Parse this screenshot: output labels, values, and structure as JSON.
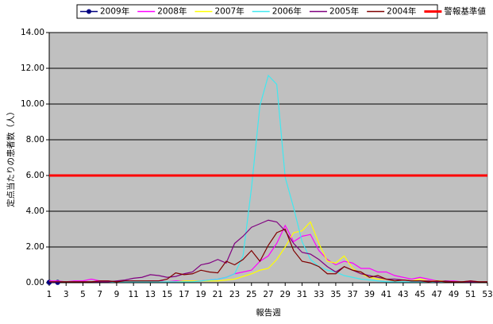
{
  "chart_data": {
    "type": "line",
    "xlabel": "報告週",
    "ylabel": "定点当たりの患者数（人）",
    "x": [
      1,
      2,
      3,
      4,
      5,
      6,
      7,
      8,
      9,
      10,
      11,
      12,
      13,
      14,
      15,
      16,
      17,
      18,
      19,
      20,
      21,
      22,
      23,
      24,
      25,
      26,
      27,
      28,
      29,
      30,
      31,
      32,
      33,
      34,
      35,
      36,
      37,
      38,
      39,
      40,
      41,
      42,
      43,
      44,
      45,
      46,
      47,
      48,
      49,
      50,
      51,
      52,
      53
    ],
    "xlim": [
      1,
      53
    ],
    "xticks": [
      1,
      3,
      5,
      7,
      9,
      11,
      13,
      15,
      17,
      19,
      21,
      23,
      25,
      27,
      29,
      31,
      33,
      35,
      37,
      39,
      41,
      43,
      45,
      47,
      49,
      51,
      53
    ],
    "ylim": [
      0,
      14
    ],
    "yticks": [
      {
        "value": 0,
        "label": "0.00"
      },
      {
        "value": 2,
        "label": "2.00"
      },
      {
        "value": 4,
        "label": "4.00"
      },
      {
        "value": 6,
        "label": "6.00"
      },
      {
        "value": 8,
        "label": "8.00"
      },
      {
        "value": 10,
        "label": "10.00"
      },
      {
        "value": 12,
        "label": "12.00"
      },
      {
        "value": 14,
        "label": "14.00"
      }
    ],
    "grid": true,
    "legend": "top",
    "series": [
      {
        "name": "2009年",
        "color": "#000080",
        "marker": "circle",
        "values": [
          0.02,
          0.02,
          null,
          null,
          null,
          null,
          null,
          null,
          null,
          null,
          null,
          null,
          null,
          null,
          null,
          null,
          null,
          null,
          null,
          null,
          null,
          null,
          null,
          null,
          null,
          null,
          null,
          null,
          null,
          null,
          null,
          null,
          null,
          null,
          null,
          null,
          null,
          null,
          null,
          null,
          null,
          null,
          null,
          null,
          null,
          null,
          null,
          null,
          null,
          null,
          null,
          null,
          null
        ]
      },
      {
        "name": "2008年",
        "color": "#ff00ff",
        "values": [
          0.1,
          0.1,
          0.05,
          0.1,
          0.1,
          0.2,
          0.1,
          0.1,
          0.05,
          0.1,
          0.1,
          0.05,
          0.1,
          0.1,
          0.05,
          0.1,
          0.1,
          0.1,
          0.1,
          0.15,
          0.2,
          0.3,
          0.5,
          0.6,
          0.7,
          1.2,
          1.5,
          2.2,
          3.2,
          2.3,
          2.6,
          2.7,
          1.8,
          1.3,
          1.0,
          1.2,
          1.1,
          0.8,
          0.8,
          0.6,
          0.6,
          0.4,
          0.3,
          0.2,
          0.3,
          0.2,
          0.1,
          0.1,
          0.1,
          0.05,
          0.1,
          0.05,
          0.05
        ]
      },
      {
        "name": "2007年",
        "color": "#ffff00",
        "values": [
          0.05,
          0.05,
          0.05,
          0.05,
          0.05,
          0.05,
          0.05,
          0.05,
          0.05,
          0.05,
          0.05,
          0.05,
          0.05,
          0.05,
          0.05,
          0.05,
          0.1,
          0.1,
          0.1,
          0.1,
          0.1,
          0.15,
          0.2,
          0.35,
          0.5,
          0.7,
          0.8,
          1.3,
          2.0,
          2.8,
          2.9,
          3.4,
          2.2,
          1.2,
          1.1,
          1.5,
          0.8,
          0.5,
          0.3,
          0.2,
          0.2,
          0.1,
          0.15,
          0.1,
          0.2,
          0.1,
          0.1,
          0.1,
          0.05,
          0.05,
          0.05,
          0.05,
          0.05
        ]
      },
      {
        "name": "2006年",
        "color": "#40e8f0",
        "values": [
          0.05,
          0.05,
          0.05,
          0.05,
          0.05,
          0.05,
          0.05,
          0.05,
          0.05,
          0.05,
          0.05,
          0.05,
          0.05,
          0.05,
          0.05,
          0.05,
          0.05,
          0.05,
          0.1,
          0.15,
          0.2,
          0.3,
          0.5,
          1.5,
          5.3,
          9.9,
          11.6,
          11.1,
          5.9,
          4.2,
          2.3,
          1.3,
          0.9,
          0.7,
          0.6,
          0.4,
          0.3,
          0.2,
          0.15,
          0.1,
          0.05,
          0.05,
          0.05,
          0.05,
          0.05,
          0.05,
          0.05,
          0.05,
          0.05,
          0.05,
          0.05,
          0.05,
          0.05
        ]
      },
      {
        "name": "2005年",
        "color": "#800080",
        "values": [
          0.05,
          0.05,
          0.05,
          0.05,
          0.05,
          0.05,
          0.05,
          0.05,
          0.1,
          0.15,
          0.25,
          0.3,
          0.45,
          0.4,
          0.3,
          0.35,
          0.5,
          0.6,
          1.0,
          1.1,
          1.3,
          1.1,
          2.2,
          2.6,
          3.1,
          3.3,
          3.5,
          3.4,
          2.9,
          2.2,
          1.7,
          1.6,
          1.3,
          0.9,
          0.6,
          0.9,
          0.7,
          0.5,
          0.4,
          0.3,
          0.2,
          0.2,
          0.15,
          0.1,
          0.1,
          0.1,
          0.05,
          0.1,
          0.05,
          0.05,
          0.05,
          0.05,
          0.05
        ]
      },
      {
        "name": "2004年",
        "color": "#800000",
        "values": [
          0.05,
          0.05,
          0.05,
          0.05,
          0.05,
          0.05,
          0.1,
          0.1,
          0.05,
          0.1,
          0.1,
          0.1,
          0.1,
          0.1,
          0.2,
          0.55,
          0.45,
          0.5,
          0.7,
          0.6,
          0.55,
          1.2,
          1.0,
          1.3,
          1.8,
          1.2,
          2.1,
          2.8,
          3.0,
          1.8,
          1.2,
          1.1,
          0.9,
          0.5,
          0.5,
          0.9,
          0.7,
          0.6,
          0.3,
          0.4,
          0.2,
          0.1,
          0.15,
          0.1,
          0.1,
          0.05,
          0.1,
          0.05,
          0.05,
          0.05,
          0.1,
          0.05,
          0.05
        ]
      },
      {
        "name": "警報基準値",
        "color": "#ff0000",
        "width": 3,
        "values": [
          6,
          6,
          6,
          6,
          6,
          6,
          6,
          6,
          6,
          6,
          6,
          6,
          6,
          6,
          6,
          6,
          6,
          6,
          6,
          6,
          6,
          6,
          6,
          6,
          6,
          6,
          6,
          6,
          6,
          6,
          6,
          6,
          6,
          6,
          6,
          6,
          6,
          6,
          6,
          6,
          6,
          6,
          6,
          6,
          6,
          6,
          6,
          6,
          6,
          6,
          6,
          6,
          6
        ]
      }
    ]
  }
}
